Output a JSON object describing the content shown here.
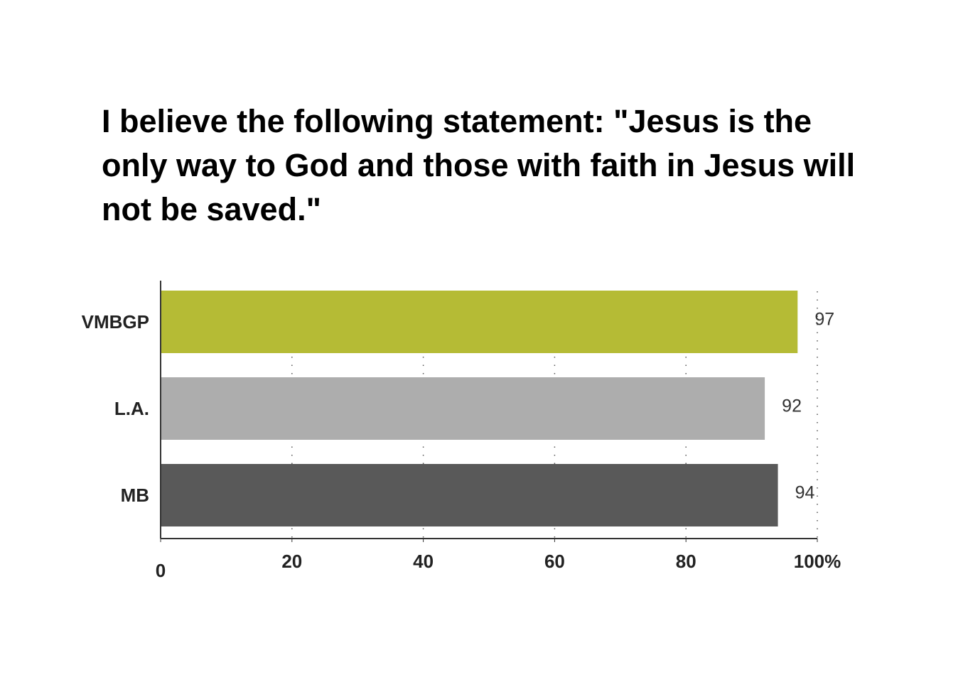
{
  "chart_data": {
    "type": "hbar",
    "title": "I believe the following statement: \"Jesus is the only way to God and those with faith in Jesus will not be saved.\"",
    "categories": [
      "VMBGP",
      "L.A.",
      "MB"
    ],
    "values": [
      97,
      92,
      94
    ],
    "colors": [
      "#b5bb35",
      "#adadad",
      "#595959"
    ],
    "xlim": [
      0,
      100
    ],
    "xticks": [
      0,
      20,
      40,
      60,
      80,
      {
        "value": 100,
        "label": "100%"
      }
    ],
    "grid": true
  }
}
